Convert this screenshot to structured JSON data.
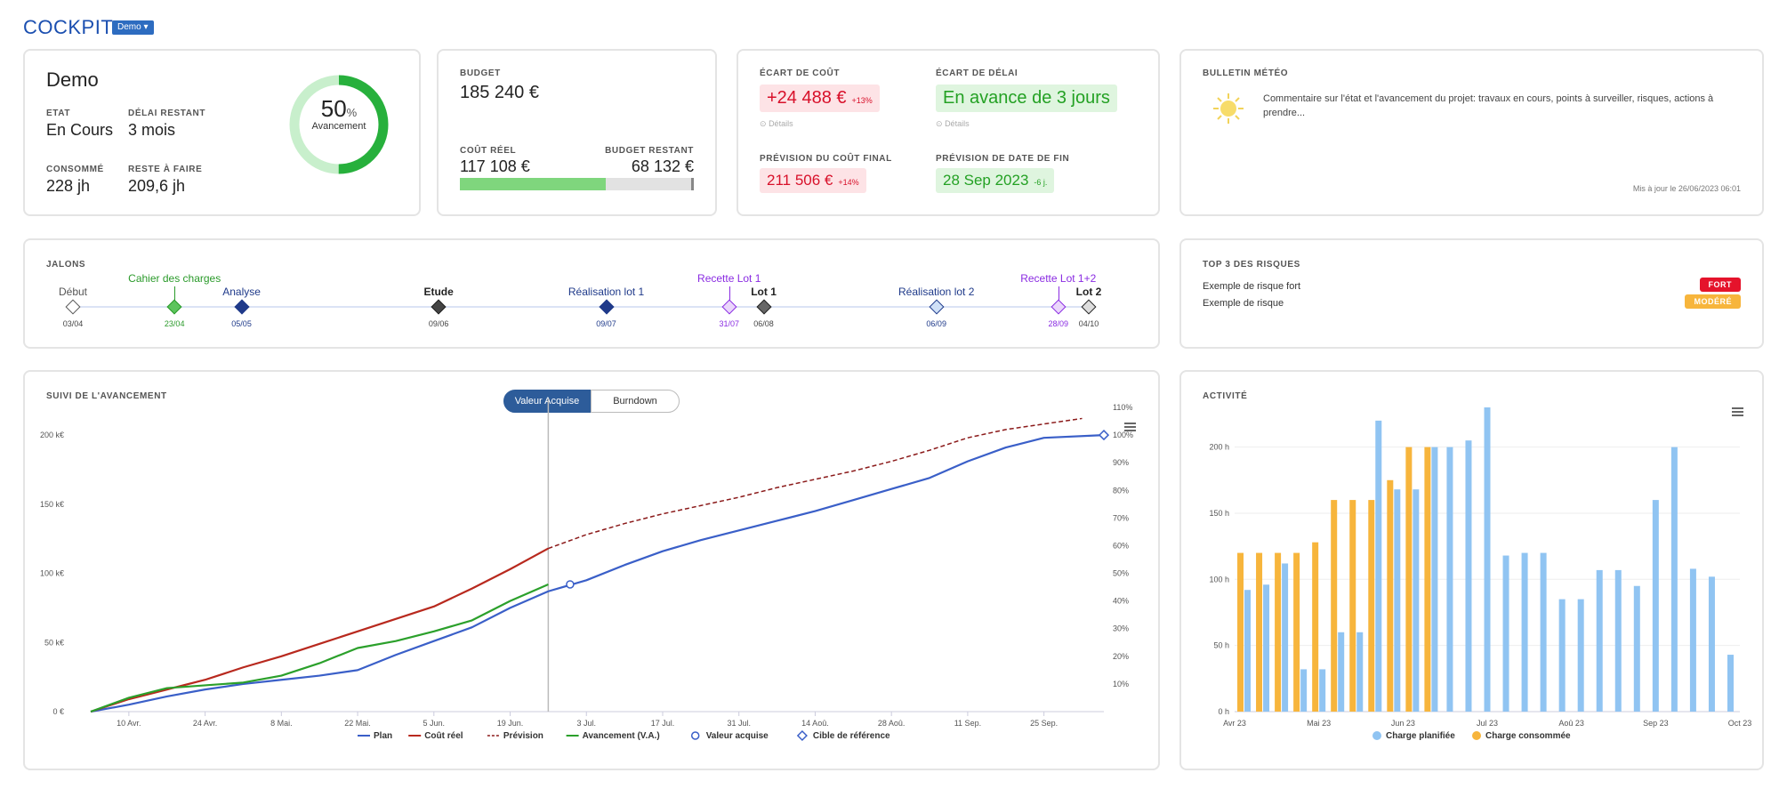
{
  "header": {
    "title": "COCKPIT",
    "project_select": "Demo"
  },
  "summary": {
    "project_name": "Demo",
    "etat_label": "ETAT",
    "etat_value": "En Cours",
    "delai_label": "DÉLAI RESTANT",
    "delai_value": "3 mois",
    "consomme_label": "CONSOMMÉ",
    "consomme_value": "228 jh",
    "reste_label": "RESTE À FAIRE",
    "reste_value": "209,6 jh",
    "progress_value": "50",
    "progress_unit": "%",
    "progress_fraction": 0.5,
    "progress_label": "Avancement"
  },
  "budget": {
    "budget_label": "BUDGET",
    "budget_value": "185 240 €",
    "cout_reel_label": "COÛT RÉEL",
    "cout_reel_value": "117 108 €",
    "restant_label": "BUDGET RESTANT",
    "restant_value": "68 132 €",
    "consumed_fraction": 0.632
  },
  "ecarts": {
    "ecart_cout_label": "ÉCART DE COÛT",
    "ecart_cout_value": "+24 488 €",
    "ecart_cout_pct": "+13%",
    "ecart_delai_label": "ÉCART DE DÉLAI",
    "ecart_delai_value": "En avance de 3 jours",
    "details_label": "Détails",
    "prevision_cout_label": "PRÉVISION DU COÛT FINAL",
    "prevision_cout_value": "211 506 €",
    "prevision_cout_pct": "+14%",
    "prevision_date_label": "PRÉVISION DE DATE DE FIN",
    "prevision_date_value": "28 Sep 2023",
    "prevision_date_delta": "-6 j."
  },
  "meteo": {
    "title": "BULLETIN MÉTÉO",
    "comment": "Commentaire sur l'état et l'avancement du projet: travaux en cours, points à surveiller, risques, actions à prendre...",
    "updated": "Mis à jour le 26/06/2023 06:01",
    "icon": "sun-icon"
  },
  "jalons": {
    "title": "JALONS",
    "items": [
      {
        "label": "Début",
        "date": "03/04",
        "color": "#555555",
        "fill": "#ffffff",
        "pos": 0.0,
        "row": 1
      },
      {
        "label": "Cahier des charges",
        "date": "23/04",
        "color": "#2a9a2a",
        "fill": "#5cc45c",
        "pos": 0.1,
        "row": 0
      },
      {
        "label": "Analyse",
        "date": "05/05",
        "color": "#1f3a8a",
        "fill": "#1f3a8a",
        "pos": 0.166,
        "row": 1
      },
      {
        "label": "Etude",
        "date": "09/06",
        "color": "#222222",
        "fill": "#444444",
        "pos": 0.36,
        "row": 1
      },
      {
        "label": "Réalisation lot 1",
        "date": "09/07",
        "color": "#1f3a8a",
        "fill": "#1f3a8a",
        "pos": 0.525,
        "row": 1
      },
      {
        "label": "Recette Lot 1",
        "date": "31/07",
        "color": "#8a2be2",
        "fill": "#ead6fb",
        "pos": 0.646,
        "row": 0
      },
      {
        "label": "Lot 1",
        "date": "06/08",
        "color": "#222222",
        "fill": "#666666",
        "pos": 0.68,
        "row": 1
      },
      {
        "label": "Réalisation lot 2",
        "date": "06/09",
        "color": "#1f3a8a",
        "fill": "#cfe0f7",
        "pos": 0.85,
        "row": 1
      },
      {
        "label": "Recette Lot 1+2",
        "date": "28/09",
        "color": "#8a2be2",
        "fill": "#ead6fb",
        "pos": 0.97,
        "row": 0
      },
      {
        "label": "Lot 2",
        "date": "04/10",
        "color": "#222222",
        "fill": "#dddddd",
        "pos": 1.0,
        "row": 1
      }
    ]
  },
  "risques": {
    "title": "TOP 3 DES RISQUES",
    "items": [
      {
        "label": "Exemple de risque fort",
        "level": "FORT",
        "color": "#e5132b"
      },
      {
        "label": "Exemple de risque",
        "level": "MODÉRÉ",
        "color": "#f7b53c"
      }
    ]
  },
  "suivi": {
    "title": "SUIVI DE L'AVANCEMENT",
    "toggle": [
      "Valeur Acquise",
      "Burndown"
    ],
    "menu_icon": "hamburger-icon",
    "chart_data": {
      "type": "line",
      "x_labels": [
        "10 Avr.",
        "24 Avr.",
        "8 Mai.",
        "22 Mai.",
        "5 Jun.",
        "19 Jun.",
        "3 Jul.",
        "17 Jul.",
        "31 Jul.",
        "14 Aoû.",
        "28 Aoû.",
        "11 Sep.",
        "25 Sep."
      ],
      "x_range_days": [
        0,
        186
      ],
      "x_label_days": [
        7,
        21,
        35,
        49,
        63,
        77,
        91,
        105,
        119,
        133,
        147,
        161,
        175
      ],
      "y_labels": [
        "0 €",
        "50 k€",
        "100 k€",
        "150 k€",
        "200 k€"
      ],
      "ylim": [
        0,
        220
      ],
      "y2_labels": [
        "10%",
        "20%",
        "30%",
        "40%",
        "50%",
        "60%",
        "70%",
        "80%",
        "90%",
        "100%",
        "110%"
      ],
      "today_day": 84,
      "series": [
        {
          "name": "Plan",
          "color": "#3a5fc8",
          "style": "solid",
          "x": [
            0,
            7,
            14,
            21,
            28,
            35,
            42,
            49,
            56,
            63,
            70,
            77,
            84,
            91,
            98,
            105,
            112,
            119,
            126,
            133,
            140,
            147,
            154,
            161,
            168,
            175,
            186
          ],
          "y": [
            0,
            5,
            11,
            16,
            20,
            23,
            26,
            30,
            41,
            51,
            61,
            75,
            87,
            95,
            106,
            116,
            124,
            131,
            138,
            145,
            153,
            161,
            169,
            181,
            191,
            198,
            200
          ]
        },
        {
          "name": "Coût réel",
          "color": "#b8291e",
          "style": "solid",
          "x": [
            0,
            7,
            14,
            21,
            28,
            35,
            42,
            49,
            56,
            63,
            70,
            77,
            84
          ],
          "y": [
            0,
            9,
            16,
            23,
            32,
            40,
            49,
            58,
            67,
            76,
            89,
            103,
            118
          ]
        },
        {
          "name": "Prévision",
          "color": "#8b1a1a",
          "style": "dash",
          "x": [
            84,
            91,
            98,
            105,
            112,
            119,
            126,
            133,
            140,
            147,
            154,
            161,
            168,
            175,
            182
          ],
          "y": [
            118,
            128,
            136,
            143,
            149,
            155,
            162,
            168,
            174,
            181,
            189,
            198,
            204,
            208,
            212
          ]
        },
        {
          "name": "Avancement (V.A.)",
          "color": "#2ba02b",
          "style": "solid",
          "x": [
            0,
            7,
            14,
            21,
            28,
            35,
            42,
            49,
            56,
            63,
            70,
            77,
            84
          ],
          "y": [
            0,
            10,
            17,
            19,
            21,
            26,
            35,
            46,
            51,
            58,
            66,
            80,
            92
          ]
        },
        {
          "name": "Valeur acquise",
          "color": "#3a5fc8",
          "style": "circle",
          "x": [
            88
          ],
          "y": [
            92
          ]
        },
        {
          "name": "Cible de référence",
          "color": "#3a5fc8",
          "style": "diamond",
          "x": [
            186
          ],
          "y": [
            200
          ]
        }
      ]
    }
  },
  "activite": {
    "title": "ACTIVITÉ",
    "menu_icon": "hamburger-icon",
    "chart_data": {
      "type": "bar",
      "x_labels": [
        "Avr 23",
        "Mai 23",
        "Jun 23",
        "Jul 23",
        "Aoû 23",
        "Sep 23",
        "Oct 23"
      ],
      "y_labels": [
        "0 h",
        "50 h",
        "100 h",
        "150 h",
        "200 h"
      ],
      "ylim": [
        0,
        230
      ],
      "series": [
        {
          "name": "Charge planifiée",
          "color": "#90c4f2",
          "values": [
            92,
            96,
            112,
            32,
            32,
            60,
            60,
            220,
            168,
            168,
            200,
            200,
            205,
            230,
            118,
            120,
            120,
            85,
            85,
            107,
            107,
            95,
            160,
            200,
            108,
            102,
            43
          ]
        },
        {
          "name": "Charge consommée",
          "color": "#f7b53c",
          "values": [
            120,
            120,
            120,
            120,
            128,
            160,
            160,
            160,
            175,
            200,
            200,
            0,
            0,
            0,
            0,
            0,
            0,
            0,
            0,
            0,
            0,
            0,
            0,
            0,
            0,
            0,
            0
          ]
        }
      ]
    }
  }
}
